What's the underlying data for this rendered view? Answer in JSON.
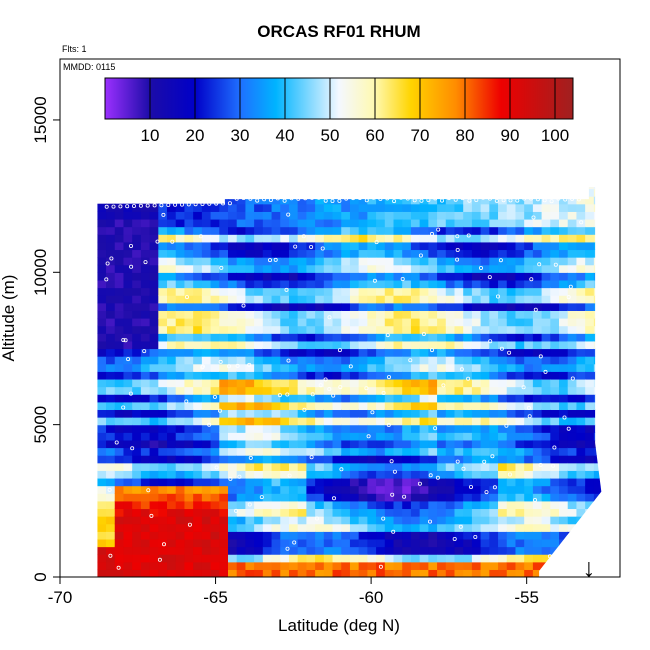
{
  "chart_data": {
    "type": "heatmap",
    "title": "ORCAS RF01 RHUM",
    "annotations": {
      "flights": "Flts: 1",
      "date": "MMDD: 0115"
    },
    "xlabel": "Latitude (deg N)",
    "ylabel": "Altitude (m)",
    "xlim": [
      -70,
      -52
    ],
    "ylim": [
      0,
      17000
    ],
    "x_ticks": [
      -70,
      -65,
      -60,
      -55
    ],
    "x_tick_labels": [
      "-70",
      "-65",
      "-60",
      "-55"
    ],
    "y_ticks": [
      0,
      5000,
      10000,
      15000
    ],
    "y_tick_labels": [
      "0",
      "5000",
      "10000",
      "15000"
    ],
    "colorbar": {
      "min": 0,
      "max": 104,
      "ticks": [
        10,
        20,
        30,
        40,
        50,
        60,
        70,
        80,
        90,
        100
      ],
      "tick_labels": [
        "10",
        "20",
        "30",
        "40",
        "50",
        "60",
        "70",
        "80",
        "90",
        "100"
      ],
      "color_stops": [
        {
          "value": 0,
          "color": "#9b30ff"
        },
        {
          "value": 10,
          "color": "#1c0ca8"
        },
        {
          "value": 20,
          "color": "#0000c8"
        },
        {
          "value": 30,
          "color": "#1f6fff"
        },
        {
          "value": 38,
          "color": "#00b4ff"
        },
        {
          "value": 52,
          "color": "#f4f8ff"
        },
        {
          "value": 60,
          "color": "#fff9b0"
        },
        {
          "value": 68,
          "color": "#ffd400"
        },
        {
          "value": 78,
          "color": "#ff8c00"
        },
        {
          "value": 88,
          "color": "#ee0000"
        },
        {
          "value": 104,
          "color": "#a02020"
        }
      ]
    },
    "coverage": {
      "lat_min": -68.8,
      "lat_max": -52.8,
      "alt_min": 0,
      "alt_max": 12800
    },
    "marker": {
      "symbol": "↓",
      "latitude": -53.0,
      "altitude": 600
    }
  }
}
